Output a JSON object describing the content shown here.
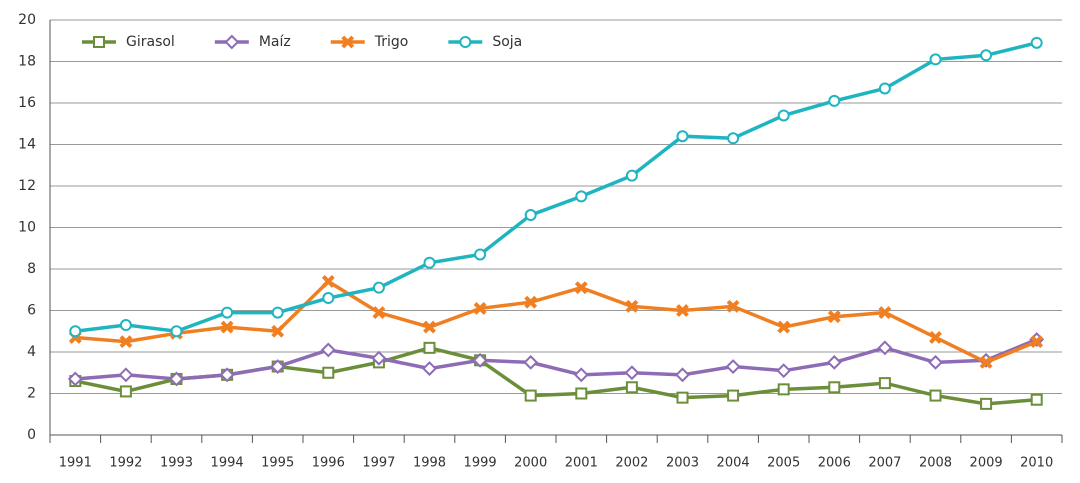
{
  "chart_data": {
    "type": "line",
    "categories": [
      "1991",
      "1992",
      "1993",
      "1994",
      "1995",
      "1996",
      "1997",
      "1998",
      "1999",
      "2000",
      "2001",
      "2002",
      "2003",
      "2004",
      "2005",
      "2006",
      "2007",
      "2008",
      "2009",
      "2010"
    ],
    "series": [
      {
        "name": "Girasol",
        "color": "#6b8e3a",
        "marker": "square",
        "values": [
          2.6,
          2.1,
          2.7,
          2.9,
          3.3,
          3.0,
          3.5,
          4.2,
          3.6,
          1.9,
          2.0,
          2.3,
          1.8,
          1.9,
          2.2,
          2.3,
          2.5,
          1.9,
          1.5,
          1.7
        ]
      },
      {
        "name": "Maíz",
        "color": "#8e6bb5",
        "marker": "diamond",
        "values": [
          2.7,
          2.9,
          2.7,
          2.9,
          3.3,
          4.1,
          3.7,
          3.2,
          3.6,
          3.5,
          2.9,
          3.0,
          2.9,
          3.3,
          3.1,
          3.5,
          4.2,
          3.5,
          3.6,
          4.6
        ]
      },
      {
        "name": "Trigo",
        "color": "#f07f22",
        "marker": "x",
        "values": [
          4.7,
          4.5,
          4.9,
          5.2,
          5.0,
          7.4,
          5.9,
          5.2,
          6.1,
          6.4,
          7.1,
          6.2,
          6.0,
          6.2,
          5.2,
          5.7,
          5.9,
          4.7,
          3.5,
          4.5
        ]
      },
      {
        "name": "Soja",
        "color": "#1fb5c0",
        "marker": "circle",
        "values": [
          5.0,
          5.3,
          5.0,
          5.9,
          5.9,
          6.6,
          7.1,
          8.3,
          8.7,
          10.6,
          11.5,
          12.5,
          14.4,
          14.3,
          15.4,
          16.1,
          16.7,
          18.1,
          18.3,
          18.9
        ]
      }
    ],
    "ylim": [
      0,
      20
    ],
    "yticks": [
      0,
      2,
      4,
      6,
      8,
      10,
      12,
      14,
      16,
      18,
      20
    ],
    "grid": true,
    "legend": "top-left"
  }
}
